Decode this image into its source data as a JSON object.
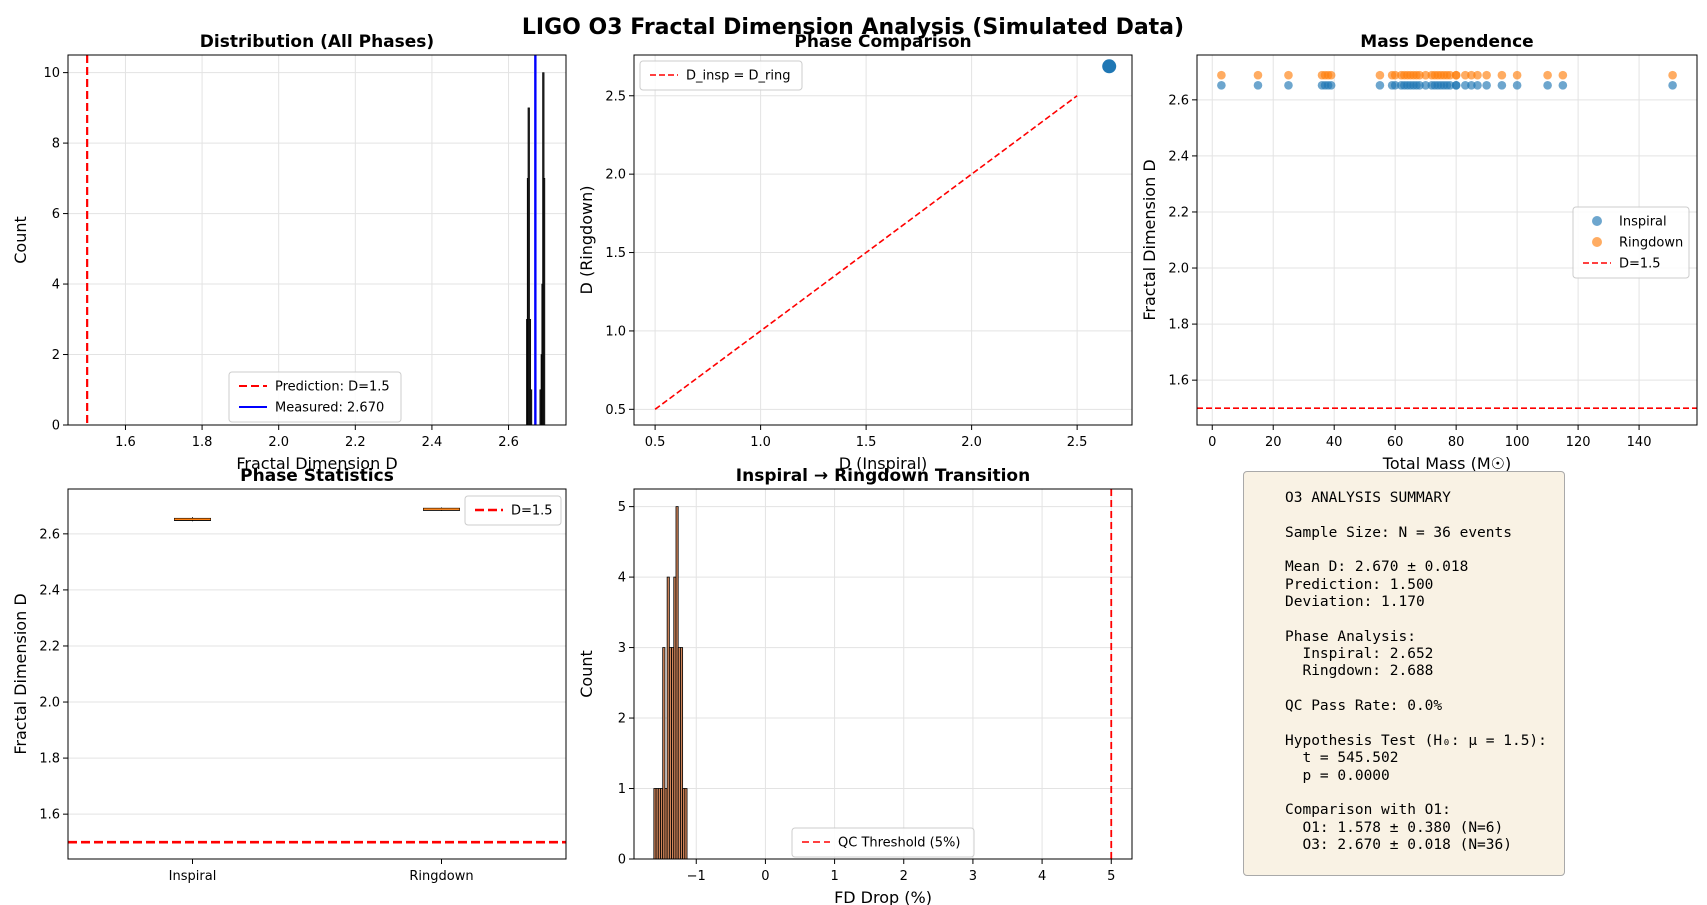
{
  "figure": {
    "suptitle": "LIGO O3 Fractal Dimension Analysis (Simulated Data)",
    "colors": {
      "blue": "#1f77b4",
      "orange": "#ff7f0e",
      "red": "#ff0000",
      "measured": "#0000ff"
    }
  },
  "chart_data": [
    {
      "type": "histogram",
      "title": "Distribution (All Phases)",
      "xlabel": "Fractal Dimension D",
      "ylabel": "Count",
      "xlim": [
        1.45,
        2.75
      ],
      "ylim": [
        0,
        10.5
      ],
      "xticks": [
        1.6,
        1.8,
        2.0,
        2.2,
        2.4,
        2.6
      ],
      "yticks": [
        0,
        2,
        4,
        6,
        8,
        10
      ],
      "grid": true,
      "bins": [
        {
          "x": 2.648,
          "count": 3
        },
        {
          "x": 2.65,
          "count": 7
        },
        {
          "x": 2.652,
          "count": 9
        },
        {
          "x": 2.655,
          "count": 3
        },
        {
          "x": 2.658,
          "count": 1
        },
        {
          "x": 2.683,
          "count": 1
        },
        {
          "x": 2.686,
          "count": 2
        },
        {
          "x": 2.688,
          "count": 4
        },
        {
          "x": 2.69,
          "count": 10
        },
        {
          "x": 2.692,
          "count": 7
        }
      ],
      "prediction": 1.5,
      "measured": 2.67,
      "legend": [
        "Prediction: D=1.5",
        "Measured: 2.670"
      ],
      "legend_loc": "lower center"
    },
    {
      "type": "scatter",
      "title": "Phase Comparison",
      "xlabel": "D (Inspiral)",
      "ylabel": "D (Ringdown)",
      "xlim": [
        0.4,
        2.76
      ],
      "ylim": [
        0.4,
        2.76
      ],
      "xticks": [
        0.5,
        1.0,
        1.5,
        2.0,
        2.5
      ],
      "yticks": [
        0.5,
        1.0,
        1.5,
        2.0,
        2.5
      ],
      "grid": true,
      "points": [
        {
          "x": 2.652,
          "y": 2.688
        }
      ],
      "line": {
        "x": [
          0.5,
          2.5
        ],
        "y": [
          0.5,
          2.5
        ],
        "label": "D_insp = D_ring"
      },
      "legend_loc": "upper left"
    },
    {
      "type": "scatter",
      "title": "Mass Dependence",
      "xlabel": "Total Mass (M☉)",
      "ylabel": "Fractal Dimension D",
      "xlim": [
        -5,
        159
      ],
      "ylim": [
        1.44,
        2.76
      ],
      "xticks": [
        0,
        20,
        40,
        60,
        80,
        100,
        120,
        140
      ],
      "yticks": [
        1.6,
        1.8,
        2.0,
        2.2,
        2.4,
        2.6
      ],
      "grid": true,
      "series": [
        {
          "name": "Inspiral",
          "color": "#1f77b4",
          "y": 2.652,
          "x": [
            3,
            15,
            25,
            36,
            37,
            38,
            39,
            55,
            59,
            60,
            62,
            63,
            64,
            65,
            66,
            67,
            68,
            70,
            72,
            73,
            74,
            75,
            76,
            77,
            78,
            80,
            80,
            83,
            85,
            87,
            90,
            95,
            100,
            110,
            115,
            151
          ]
        },
        {
          "name": "Ringdown",
          "color": "#ff7f0e",
          "y": 2.688,
          "x": [
            3,
            15,
            25,
            36,
            37,
            38,
            39,
            55,
            59,
            60,
            62,
            63,
            64,
            65,
            66,
            67,
            68,
            70,
            72,
            73,
            74,
            75,
            76,
            77,
            78,
            80,
            80,
            83,
            85,
            87,
            90,
            95,
            100,
            110,
            115,
            151
          ]
        }
      ],
      "hline": {
        "y": 1.5,
        "label": "D=1.5"
      },
      "legend_loc": "center right"
    },
    {
      "type": "box",
      "title": "Phase Statistics",
      "ylabel": "Fractal Dimension D",
      "categories": [
        "Inspiral",
        "Ringdown"
      ],
      "boxes": [
        {
          "min": 2.645,
          "q1": 2.649,
          "median": 2.652,
          "q3": 2.655,
          "max": 2.659
        },
        {
          "min": 2.682,
          "q1": 2.685,
          "median": 2.688,
          "q3": 2.691,
          "max": 2.694
        }
      ],
      "ylim": [
        1.44,
        2.76
      ],
      "yticks": [
        1.6,
        1.8,
        2.0,
        2.2,
        2.4,
        2.6
      ],
      "grid": true,
      "hline": {
        "y": 1.5,
        "label": "D=1.5"
      },
      "legend_loc": "upper right"
    },
    {
      "type": "histogram",
      "title": "Inspiral → Ringdown Transition",
      "xlabel": "FD Drop (%)",
      "ylabel": "Count",
      "xlim": [
        -1.9,
        5.3
      ],
      "ylim": [
        0,
        5.25
      ],
      "xticks": [
        -1,
        0,
        1,
        2,
        3,
        4,
        5
      ],
      "yticks": [
        0,
        1,
        2,
        3,
        4,
        5
      ],
      "grid": true,
      "bins": [
        {
          "x": -1.597,
          "count": 1
        },
        {
          "x": -1.565,
          "count": 1
        },
        {
          "x": -1.533,
          "count": 1
        },
        {
          "x": -1.501,
          "count": 1
        },
        {
          "x": -1.469,
          "count": 3
        },
        {
          "x": -1.437,
          "count": 1
        },
        {
          "x": -1.405,
          "count": 4
        },
        {
          "x": -1.373,
          "count": 3
        },
        {
          "x": -1.341,
          "count": 3
        },
        {
          "x": -1.309,
          "count": 4
        },
        {
          "x": -1.277,
          "count": 5
        },
        {
          "x": -1.245,
          "count": 3
        },
        {
          "x": -1.213,
          "count": 3
        },
        {
          "x": -1.181,
          "count": 1
        },
        {
          "x": -1.149,
          "count": 1
        }
      ],
      "bin_width": 0.032,
      "vline": {
        "x": 5,
        "label": "QC Threshold (5%)"
      },
      "legend_loc": "lower center"
    }
  ],
  "summary": {
    "lines": [
      "O3 ANALYSIS SUMMARY",
      "",
      "Sample Size: N = 36 events",
      "",
      "Mean D: 2.670 ± 0.018",
      "Prediction: 1.500",
      "Deviation: 1.170",
      "",
      "Phase Analysis:",
      "  Inspiral: 2.652",
      "  Ringdown: 2.688",
      "",
      "QC Pass Rate: 0.0%",
      "",
      "Hypothesis Test (H₀: μ = 1.5):",
      "  t = 545.502",
      "  p = 0.0000",
      "",
      "Comparison with O1:",
      "  O1: 1.578 ± 0.380 (N=6)",
      "  O3: 2.670 ± 0.018 (N=36)"
    ]
  }
}
